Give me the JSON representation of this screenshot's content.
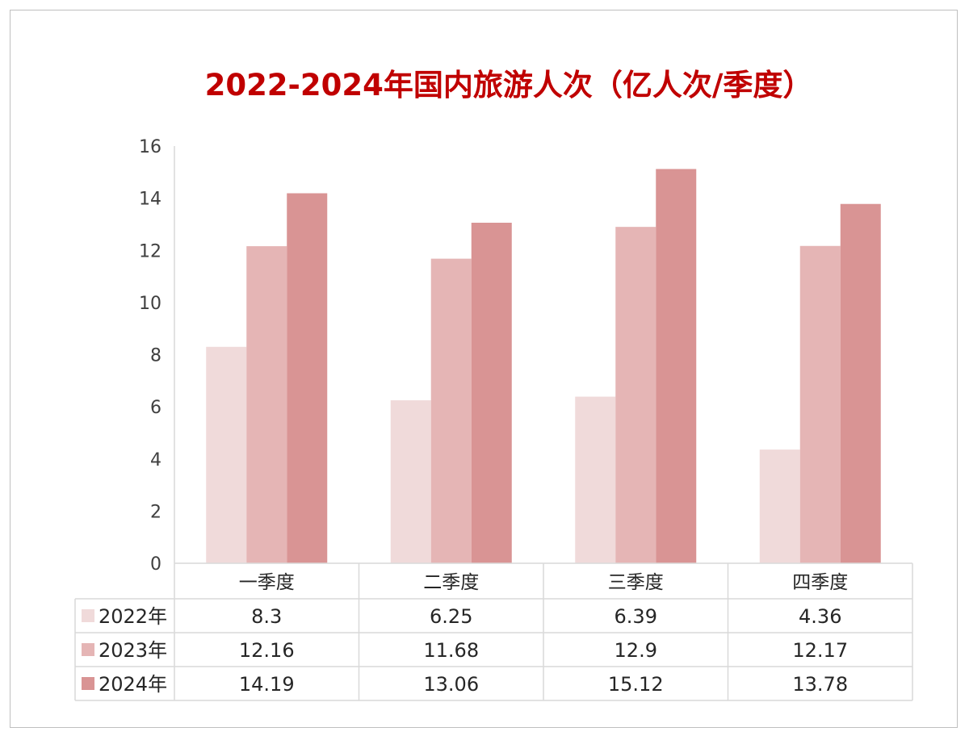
{
  "chart_data": {
    "type": "bar",
    "title": "2022-2024年国内旅游人次（亿人次/季度）",
    "categories": [
      "一季度",
      "二季度",
      "三季度",
      "四季度"
    ],
    "series": [
      {
        "name": "2022年",
        "color": "#f0dada",
        "values": [
          8.3,
          6.25,
          6.39,
          4.36
        ],
        "labels": [
          "8.3",
          "6.25",
          "6.39",
          "4.36"
        ]
      },
      {
        "name": "2023年",
        "color": "#e5b5b5",
        "values": [
          12.16,
          11.68,
          12.9,
          12.17
        ],
        "labels": [
          "12.16",
          "11.68",
          "12.9",
          "12.17"
        ]
      },
      {
        "name": "2024年",
        "color": "#d99494",
        "values": [
          14.19,
          13.06,
          15.12,
          13.78
        ],
        "labels": [
          "14.19",
          "13.06",
          "15.12",
          "13.78"
        ]
      }
    ],
    "ylim": [
      0,
      16
    ],
    "yticks": [
      "0",
      "2",
      "4",
      "6",
      "8",
      "10",
      "12",
      "14",
      "16"
    ],
    "grid": false,
    "legend": "data-table"
  },
  "colors": {
    "title": "#c00000",
    "axis": "#d9d9d9"
  }
}
